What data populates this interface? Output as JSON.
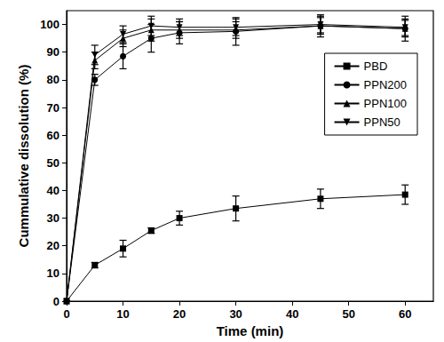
{
  "chart_data": {
    "type": "line",
    "x_label": "Time (min)",
    "y_label": "Cummulative dissolution (%)",
    "xlim": [
      0,
      65
    ],
    "xticks": [
      0,
      10,
      20,
      30,
      40,
      50,
      60
    ],
    "ylim": [
      0,
      105
    ],
    "yticks": [
      0,
      10,
      20,
      30,
      40,
      50,
      60,
      70,
      80,
      90,
      100
    ],
    "grid": false,
    "legend": "upper right",
    "x": [
      0,
      5,
      10,
      15,
      20,
      30,
      45,
      60
    ],
    "series": [
      {
        "name": "PBD",
        "color": "#000000",
        "marker": "square",
        "line_style": "solid",
        "values": [
          0,
          13,
          19,
          25.5,
          30,
          33.5,
          37,
          38.5
        ],
        "errors": [
          0,
          1,
          3,
          1,
          2.5,
          4.5,
          3.5,
          3.5
        ]
      },
      {
        "name": "PPN200",
        "color": "#000000",
        "marker": "circle",
        "line_style": "solid",
        "values": [
          0,
          80,
          88.5,
          95,
          97,
          97.5,
          99.5,
          98.5
        ],
        "errors": [
          0,
          2,
          4.5,
          5,
          4,
          5,
          4,
          4.5
        ]
      },
      {
        "name": "PPN100",
        "color": "#000000",
        "marker": "triangle",
        "line_style": "solid",
        "values": [
          0,
          87,
          95,
          98,
          98,
          98,
          99.5,
          98.5
        ],
        "errors": [
          0,
          3,
          3,
          4,
          3,
          3,
          3,
          3
        ]
      },
      {
        "name": "PPN50",
        "color": "#000000",
        "marker": "triangle-down",
        "line_style": "solid",
        "values": [
          0,
          89,
          96.5,
          99.5,
          99,
          99,
          100,
          99
        ],
        "errors": [
          0,
          3.5,
          3,
          3.5,
          3,
          3,
          3,
          3
        ]
      }
    ]
  }
}
